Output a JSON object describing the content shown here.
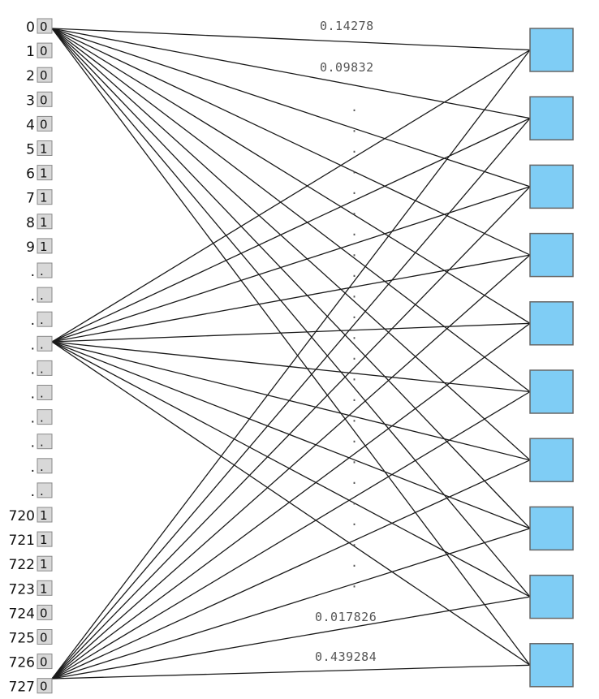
{
  "inputs": [
    {
      "index": "0",
      "value": "0"
    },
    {
      "index": "1",
      "value": "0"
    },
    {
      "index": "2",
      "value": "0"
    },
    {
      "index": "3",
      "value": "0"
    },
    {
      "index": "4",
      "value": "0"
    },
    {
      "index": "5",
      "value": "1"
    },
    {
      "index": "6",
      "value": "1"
    },
    {
      "index": "7",
      "value": "1"
    },
    {
      "index": "8",
      "value": "1"
    },
    {
      "index": "9",
      "value": "1"
    },
    {
      "index": ".",
      "value": "."
    },
    {
      "index": ".",
      "value": "."
    },
    {
      "index": ".",
      "value": "."
    },
    {
      "index": ".",
      "value": "."
    },
    {
      "index": ".",
      "value": "."
    },
    {
      "index": ".",
      "value": "."
    },
    {
      "index": ".",
      "value": "."
    },
    {
      "index": ".",
      "value": "."
    },
    {
      "index": ".",
      "value": "."
    },
    {
      "index": ".",
      "value": "."
    },
    {
      "index": "720",
      "value": "1"
    },
    {
      "index": "721",
      "value": "1"
    },
    {
      "index": "722",
      "value": "1"
    },
    {
      "index": "723",
      "value": "1"
    },
    {
      "index": "724",
      "value": "0"
    },
    {
      "index": "725",
      "value": "0"
    },
    {
      "index": "726",
      "value": "0"
    },
    {
      "index": "727",
      "value": "0"
    }
  ],
  "weights": {
    "top": [
      "0.14278",
      "0.09832"
    ],
    "bottom": [
      "0.017826",
      "0.439284"
    ],
    "ellipsis": "."
  },
  "output_count": 10,
  "colors": {
    "output_fill": "#7fcdf5",
    "output_stroke": "#666666",
    "input_fill": "#d8d8d8",
    "input_stroke": "#888888",
    "edge": "#1a1a1a"
  }
}
